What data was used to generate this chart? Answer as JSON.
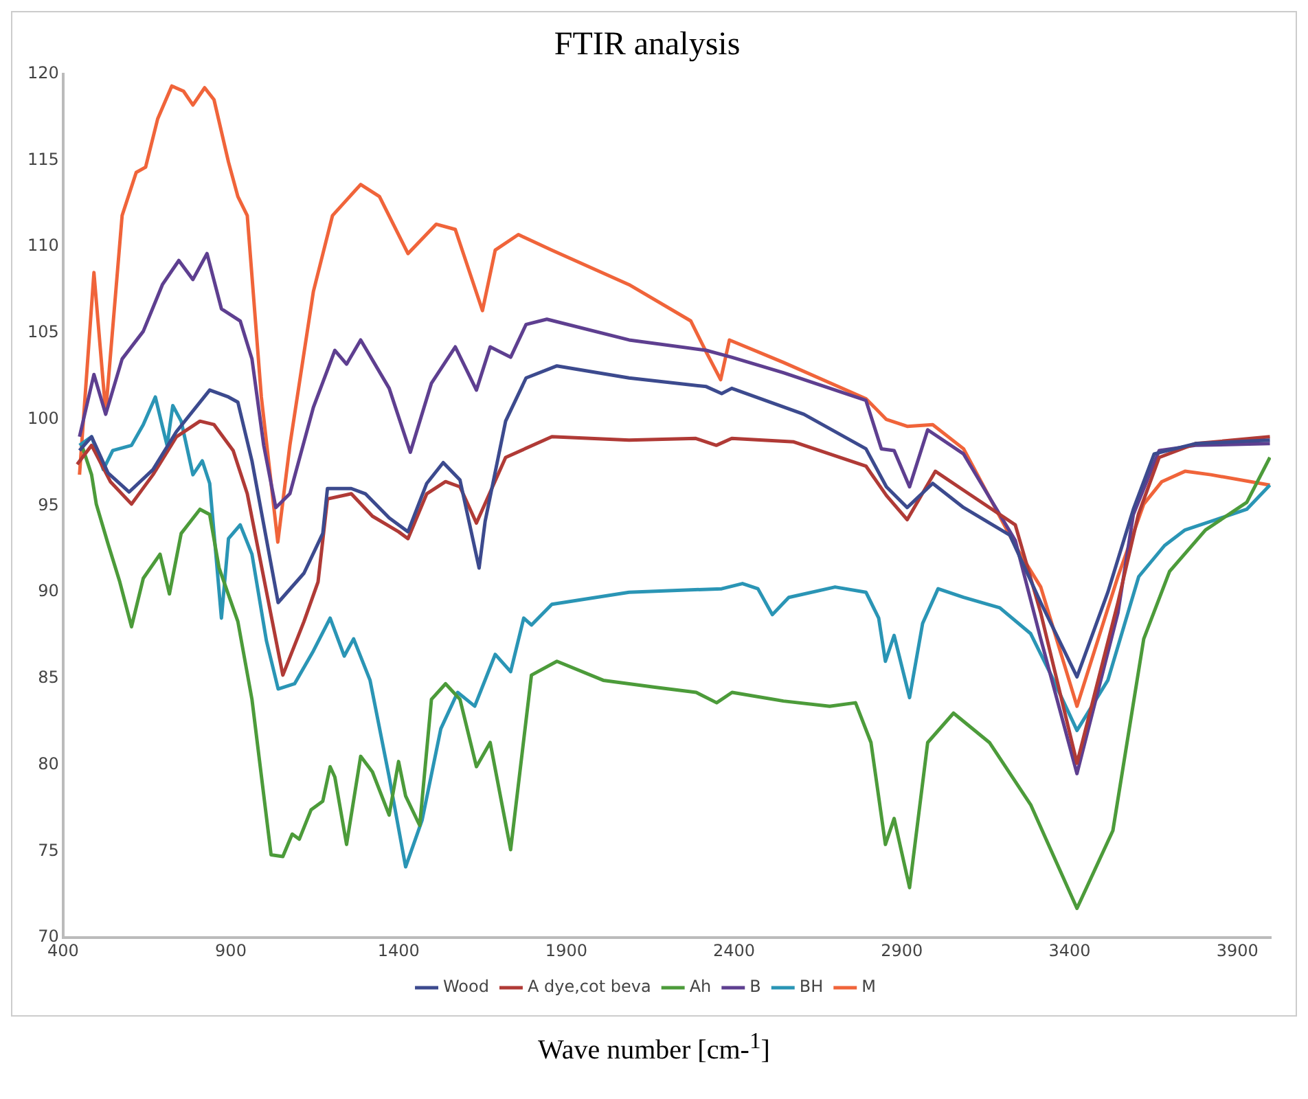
{
  "chart_data": {
    "type": "line",
    "title": "FTIR analysis",
    "xlabel": "Wave number [cm-$^{1}$]",
    "xlim": [
      400,
      4000
    ],
    "ylim": [
      70,
      120
    ],
    "xticks": [
      400,
      900,
      1400,
      1900,
      2400,
      2900,
      3400,
      3900
    ],
    "yticks": [
      70,
      75,
      80,
      85,
      90,
      95,
      100,
      105,
      110,
      115,
      120
    ],
    "grid": false,
    "legend": "bottom",
    "marker": "none",
    "series": [
      {
        "name": "Wood",
        "color": "#3c4a8e",
        "x": [
          449,
          485,
          534,
          597,
          668,
          738,
          837,
          893,
          921,
          963,
          1041,
          1118,
          1174,
          1188,
          1259,
          1301,
          1372,
          1428,
          1484,
          1533,
          1583,
          1640,
          1658,
          1719,
          1780,
          1872,
          2087,
          2317,
          2363,
          2393,
          2608,
          2793,
          2854,
          2916,
          2992,
          3084,
          3222,
          3314,
          3422,
          3514,
          3590,
          3652,
          3775,
          3997
        ],
        "values": [
          98.2,
          99,
          96.9,
          95.8,
          97.1,
          99.3,
          101.7,
          101.3,
          101,
          97.6,
          89.4,
          91.1,
          93.4,
          96,
          96,
          95.7,
          94.3,
          93.5,
          96.3,
          97.5,
          96.5,
          91.4,
          94.1,
          99.9,
          102.4,
          103.1,
          102.4,
          101.9,
          101.5,
          101.8,
          100.3,
          98.3,
          96.1,
          94.9,
          96.3,
          94.9,
          93.3,
          89.4,
          85.1,
          90,
          94.8,
          98,
          98.6,
          98.8
        ]
      },
      {
        "name": "A dye,cot beva",
        "color": "#b03a36",
        "x": [
          442,
          485,
          541,
          604,
          668,
          738,
          808,
          850,
          907,
          949,
          1055,
          1118,
          1160,
          1188,
          1259,
          1322,
          1400,
          1428,
          1484,
          1540,
          1583,
          1632,
          1719,
          1857,
          2087,
          2286,
          2347,
          2393,
          2578,
          2793,
          2854,
          2916,
          3000,
          3084,
          3238,
          3314,
          3422,
          3544,
          3605,
          3667,
          3775,
          3997
        ],
        "values": [
          97.4,
          98.5,
          96.4,
          95.1,
          96.8,
          99,
          99.9,
          99.7,
          98.2,
          95.7,
          85.2,
          88.3,
          90.6,
          95.4,
          95.7,
          94.4,
          93.5,
          93.1,
          95.7,
          96.4,
          96.1,
          94,
          97.8,
          99,
          98.8,
          98.9,
          98.5,
          98.9,
          98.7,
          97.3,
          95.6,
          94.2,
          97,
          95.9,
          93.9,
          88.8,
          80.1,
          89.4,
          94.5,
          97.8,
          98.6,
          99
        ]
      },
      {
        "name": "Ah",
        "color": "#4c9b3a",
        "x": [
          456,
          485,
          499,
          534,
          569,
          604,
          639,
          689,
          717,
          752,
          808,
          837,
          865,
          921,
          963,
          1020,
          1055,
          1083,
          1104,
          1139,
          1174,
          1196,
          1210,
          1245,
          1287,
          1322,
          1372,
          1400,
          1421,
          1463,
          1498,
          1540,
          1583,
          1632,
          1673,
          1734,
          1796,
          1872,
          2010,
          2164,
          2287,
          2348,
          2394,
          2547,
          2685,
          2762,
          2808,
          2851,
          2877,
          2923,
          2977,
          3054,
          3161,
          3284,
          3422,
          3529,
          3621,
          3698,
          3805,
          3928,
          3997
        ],
        "values": [
          98.5,
          96.8,
          95.1,
          92.8,
          90.6,
          88,
          90.8,
          92.2,
          89.9,
          93.4,
          94.8,
          94.5,
          91.4,
          88.3,
          83.8,
          74.8,
          74.7,
          76,
          75.7,
          77.4,
          77.9,
          79.9,
          79.3,
          75.4,
          80.5,
          79.6,
          77.1,
          80.2,
          78.2,
          76.5,
          83.8,
          84.7,
          83.8,
          79.9,
          81.3,
          75.1,
          85.2,
          86,
          84.9,
          84.5,
          84.2,
          83.6,
          84.2,
          83.7,
          83.4,
          83.6,
          81.3,
          75.4,
          76.9,
          72.9,
          81.3,
          83,
          81.3,
          77.7,
          71.7,
          76.2,
          87.3,
          91.2,
          93.6,
          95.2,
          97.8
        ]
      },
      {
        "name": "B",
        "color": "#5e3f90",
        "x": [
          449,
          492,
          527,
          576,
          639,
          696,
          745,
          787,
          829,
          872,
          928,
          963,
          998,
          1034,
          1076,
          1146,
          1210,
          1245,
          1287,
          1372,
          1435,
          1498,
          1569,
          1632,
          1673,
          1734,
          1780,
          1842,
          2087,
          2317,
          2393,
          2547,
          2793,
          2839,
          2877,
          2923,
          2977,
          3084,
          3238,
          3314,
          3422,
          3544,
          3590,
          3667,
          3775,
          3997
        ],
        "values": [
          99,
          102.6,
          100.3,
          103.5,
          105.1,
          107.8,
          109.2,
          108.1,
          109.6,
          106.4,
          105.7,
          103.5,
          98.5,
          94.9,
          95.7,
          100.7,
          104,
          103.2,
          104.6,
          101.8,
          98.1,
          102.1,
          104.2,
          101.7,
          104.2,
          103.6,
          105.5,
          105.8,
          104.6,
          104,
          103.6,
          102.7,
          101.1,
          98.3,
          98.2,
          96.1,
          99.4,
          98,
          93,
          87.3,
          79.5,
          88.8,
          94.5,
          98.2,
          98.5,
          98.6
        ]
      },
      {
        "name": "BH",
        "color": "#2a95b5",
        "x": [
          449,
          485,
          520,
          548,
          604,
          639,
          675,
          696,
          710,
          727,
          752,
          787,
          815,
          837,
          872,
          893,
          928,
          963,
          1006,
          1041,
          1090,
          1146,
          1196,
          1238,
          1266,
          1315,
          1372,
          1421,
          1470,
          1526,
          1576,
          1627,
          1688,
          1734,
          1773,
          1796,
          1857,
          2087,
          2363,
          2425,
          2471,
          2514,
          2563,
          2701,
          2793,
          2831,
          2851,
          2877,
          2923,
          2962,
          3008,
          3084,
          3192,
          3284,
          3345,
          3422,
          3514,
          3606,
          3683,
          3744,
          3836,
          3928,
          3997
        ],
        "values": [
          98.5,
          99,
          97.1,
          98.2,
          98.5,
          99.7,
          101.3,
          99.6,
          98.5,
          100.8,
          99.9,
          96.8,
          97.6,
          96.3,
          88.5,
          93.1,
          93.9,
          92.2,
          87.2,
          84.4,
          84.7,
          86.6,
          88.5,
          86.3,
          87.3,
          84.9,
          79.3,
          74.1,
          76.8,
          82.1,
          84.2,
          83.4,
          86.4,
          85.4,
          88.5,
          88.1,
          89.3,
          90,
          90.2,
          90.5,
          90.2,
          88.7,
          89.7,
          90.3,
          90,
          88.5,
          86,
          87.5,
          83.9,
          88.2,
          90.2,
          89.7,
          89.1,
          87.6,
          85.2,
          82,
          84.9,
          90.9,
          92.7,
          93.6,
          94.2,
          94.8,
          96.2
        ]
      },
      {
        "name": "M",
        "color": "#f0643a",
        "x": [
          449,
          492,
          527,
          576,
          618,
          646,
          682,
          724,
          759,
          787,
          822,
          850,
          893,
          921,
          949,
          991,
          1040,
          1076,
          1146,
          1203,
          1287,
          1343,
          1428,
          1512,
          1569,
          1650,
          1688,
          1757,
          1857,
          2087,
          2271,
          2317,
          2360,
          2386,
          2547,
          2793,
          2854,
          2916,
          2992,
          3084,
          3238,
          3314,
          3422,
          3544,
          3621,
          3675,
          3744,
          3821,
          3997
        ],
        "values": [
          96.8,
          108.5,
          100.4,
          111.8,
          114.3,
          114.6,
          117.4,
          119.3,
          119,
          118.2,
          119.2,
          118.5,
          114.9,
          112.9,
          111.8,
          101.3,
          92.9,
          98.5,
          107.4,
          111.8,
          113.6,
          112.9,
          109.6,
          111.3,
          111,
          106.3,
          109.8,
          110.7,
          109.8,
          107.8,
          105.7,
          103.9,
          102.3,
          104.6,
          103.3,
          101.2,
          100,
          99.6,
          99.7,
          98.3,
          92.7,
          90.3,
          83.4,
          90.9,
          95.1,
          96.4,
          97,
          96.8,
          96.2
        ]
      }
    ]
  }
}
